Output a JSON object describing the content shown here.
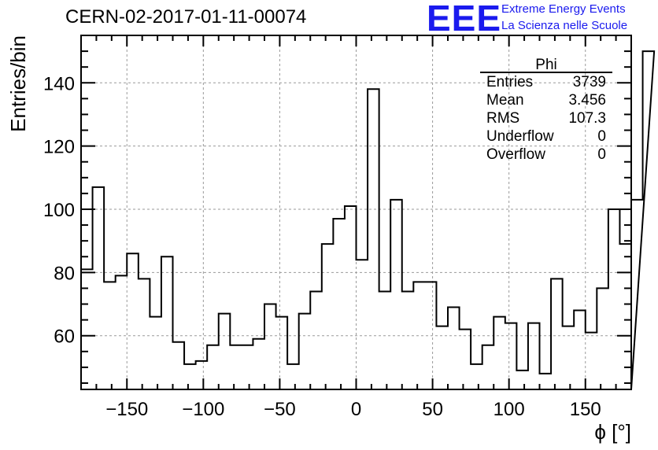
{
  "header": {
    "run_title": "CERN-02-2017-01-11-00074",
    "logo_text": "EEE",
    "logo_line1": "Extreme Energy Events",
    "logo_line2": "La Scienza nelle Scuole"
  },
  "stats_box": {
    "title": "Phi",
    "rows": [
      {
        "label": "Entries",
        "value": "3739"
      },
      {
        "label": "Mean",
        "value": "3.456"
      },
      {
        "label": "RMS",
        "value": "107.3"
      },
      {
        "label": "Underflow",
        "value": "0"
      },
      {
        "label": "Overflow",
        "value": "0"
      }
    ]
  },
  "colors": {
    "line": "#000000",
    "grid": "#9a9a9a",
    "logo": "#1a1aee"
  },
  "chart_data": {
    "type": "histogram",
    "xlabel": "ϕ [°]",
    "ylabel": "Entries/bin",
    "xlim": [
      -180,
      180
    ],
    "ylim": [
      43,
      155
    ],
    "grid": true,
    "bin_width": 7.5,
    "xticks": [
      -150,
      -100,
      -50,
      0,
      50,
      100,
      150
    ],
    "xtick_labels": [
      "−150",
      "−100",
      "−50",
      "0",
      "50",
      "100",
      "150"
    ],
    "yticks": [
      60,
      80,
      100,
      120,
      140
    ],
    "yticks_minor_step": 5,
    "xticks_minor_step": 10,
    "values": [
      81,
      107,
      77,
      79,
      86,
      78,
      66,
      85,
      58,
      51,
      52,
      57,
      67,
      57,
      57,
      59,
      70,
      66,
      51,
      67,
      74,
      89,
      97,
      101,
      84,
      138,
      74,
      103,
      74,
      77,
      77,
      63,
      69,
      62,
      51,
      57,
      66,
      64,
      49,
      64,
      48,
      78,
      63,
      68,
      61,
      75,
      100,
      89,
      103,
      150
    ]
  }
}
